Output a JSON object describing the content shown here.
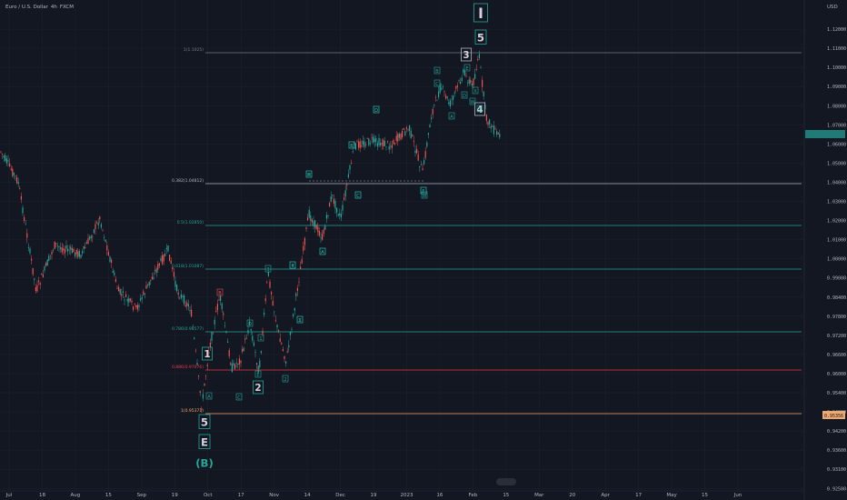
{
  "title": {
    "pair": "Euro / U.S. Dollar",
    "interval": "4h",
    "exchange": "FXCM"
  },
  "price_axis": {
    "currency": "USD",
    "labels": [
      "1.12000",
      "1.11000",
      "1.10000",
      "1.09000",
      "1.08000",
      "1.07000",
      "1.06000",
      "1.05000",
      "1.04000",
      "1.03000",
      "1.02000",
      "1.01000",
      "1.00000",
      "0.99000",
      "0.98400",
      "0.97800",
      "0.97200",
      "0.96600",
      "0.96000",
      "0.95400",
      "0.94800",
      "0.94200",
      "0.93600",
      "0.93100",
      "0.92500"
    ],
    "current_price_badge": "1.07000",
    "low_level_badge": "0.95356"
  },
  "time_axis": {
    "labels": [
      "Jul",
      "18",
      "Aug",
      "15",
      "Sep",
      "19",
      "Oct",
      "17",
      "Nov",
      "14",
      "Dec",
      "19",
      "2023",
      "16",
      "Feb",
      "15",
      "Mar",
      "20",
      "Apr",
      "17",
      "May",
      "15",
      "Jun"
    ]
  },
  "fib_levels": [
    {
      "label": "1(1.1025)",
      "color": "#787b86"
    },
    {
      "label": "0.382(1.04812)",
      "color": "#b2b5be"
    },
    {
      "label": "0.5(1.02850)",
      "color": "#26a69a"
    },
    {
      "label": "0.618(1.01087)",
      "color": "#26a69a"
    },
    {
      "label": "0.786(0.98577)",
      "color": "#26a69a"
    },
    {
      "label": "0.886(0.97076)",
      "color": "#f23645"
    },
    {
      "label": "1(0.95371)",
      "color": "#f0a872"
    }
  ],
  "wave_labels": {
    "major": [
      "I",
      "5",
      "3",
      "4",
      "1",
      "2",
      "5",
      "E",
      "(B)"
    ],
    "minor": [
      "A",
      "B",
      "C",
      "D",
      "E",
      "1",
      "2",
      "3",
      "4",
      "5",
      "A",
      "B",
      "C",
      "D",
      "E",
      "X",
      "W",
      "Y",
      "Z",
      "A",
      "B",
      "C",
      "D",
      "E",
      "W",
      "A",
      "B",
      "C",
      "D",
      "E",
      "W",
      "X",
      "Y"
    ]
  },
  "colors": {
    "background": "#131722",
    "up": "#26a69a",
    "down": "#ef5350",
    "grid": "#1e222d",
    "text": "#b2b5be"
  }
}
